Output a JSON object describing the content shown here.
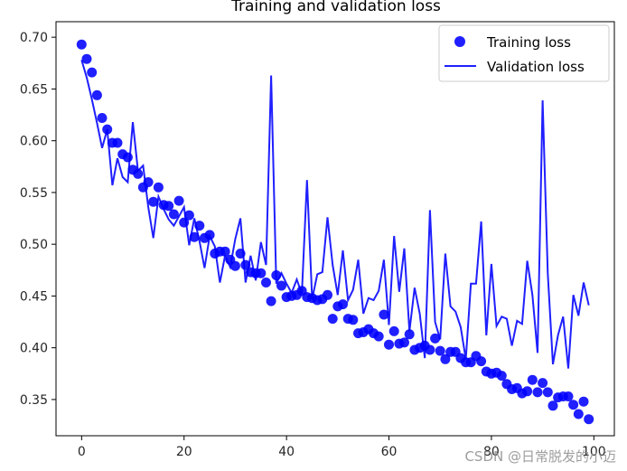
{
  "chart_data": {
    "type": "scatter+line",
    "title": "Training and validation loss",
    "xlim": [
      -5,
      104
    ],
    "ylim": [
      0.315,
      0.715
    ],
    "xticks": [
      0,
      20,
      40,
      60,
      80,
      100
    ],
    "yticks": [
      0.35,
      0.4,
      0.45,
      0.5,
      0.55,
      0.6,
      0.65,
      0.7
    ],
    "grid": false,
    "legend_position": "top-right",
    "series": [
      {
        "name": "Training loss",
        "style": "markers",
        "color": "#0000ff",
        "x": [
          0,
          1,
          2,
          3,
          4,
          5,
          6,
          7,
          8,
          9,
          10,
          11,
          12,
          13,
          14,
          15,
          16,
          17,
          18,
          19,
          20,
          21,
          22,
          23,
          24,
          25,
          26,
          27,
          28,
          29,
          30,
          31,
          32,
          33,
          34,
          35,
          36,
          37,
          38,
          39,
          40,
          41,
          42,
          43,
          44,
          45,
          46,
          47,
          48,
          49,
          50,
          51,
          52,
          53,
          54,
          55,
          56,
          57,
          58,
          59,
          60,
          61,
          62,
          63,
          64,
          65,
          66,
          67,
          68,
          69,
          70,
          71,
          72,
          73,
          74,
          75,
          76,
          77,
          78,
          79,
          80,
          81,
          82,
          83,
          84,
          85,
          86,
          87,
          88,
          89,
          90,
          91,
          92,
          93,
          94,
          95,
          96,
          97,
          98,
          99
        ],
        "y": [
          0.693,
          0.679,
          0.666,
          0.644,
          0.622,
          0.611,
          0.598,
          0.598,
          0.587,
          0.584,
          0.572,
          0.568,
          0.555,
          0.56,
          0.541,
          0.555,
          0.538,
          0.537,
          0.529,
          0.542,
          0.521,
          0.528,
          0.507,
          0.518,
          0.506,
          0.509,
          0.491,
          0.493,
          0.493,
          0.485,
          0.479,
          0.491,
          0.48,
          0.473,
          0.472,
          0.472,
          0.463,
          0.445,
          0.47,
          0.46,
          0.449,
          0.45,
          0.451,
          0.455,
          0.449,
          0.448,
          0.446,
          0.447,
          0.451,
          0.428,
          0.44,
          0.442,
          0.428,
          0.427,
          0.414,
          0.415,
          0.418,
          0.414,
          0.411,
          0.432,
          0.403,
          0.416,
          0.404,
          0.405,
          0.413,
          0.398,
          0.4,
          0.402,
          0.398,
          0.409,
          0.397,
          0.389,
          0.396,
          0.396,
          0.39,
          0.386,
          0.386,
          0.392,
          0.387,
          0.377,
          0.375,
          0.376,
          0.373,
          0.365,
          0.36,
          0.361,
          0.356,
          0.358,
          0.369,
          0.357,
          0.366,
          0.357,
          0.344,
          0.352,
          0.353,
          0.353,
          0.345,
          0.336,
          0.348,
          0.331
        ]
      },
      {
        "name": "Validation loss",
        "style": "line",
        "color": "#0000ff",
        "x": [
          0,
          1,
          2,
          3,
          4,
          5,
          6,
          7,
          8,
          9,
          10,
          11,
          12,
          13,
          14,
          15,
          16,
          17,
          18,
          19,
          20,
          21,
          22,
          23,
          24,
          25,
          26,
          27,
          28,
          29,
          30,
          31,
          32,
          33,
          34,
          35,
          36,
          37,
          38,
          39,
          40,
          41,
          42,
          43,
          44,
          45,
          46,
          47,
          48,
          49,
          50,
          51,
          52,
          53,
          54,
          55,
          56,
          57,
          58,
          59,
          60,
          61,
          62,
          63,
          64,
          65,
          66,
          67,
          68,
          69,
          70,
          71,
          72,
          73,
          74,
          75,
          76,
          77,
          78,
          79,
          80,
          81,
          82,
          83,
          84,
          85,
          86,
          87,
          88,
          89,
          90,
          91,
          92,
          93,
          94,
          95,
          96,
          97,
          98,
          99
        ],
        "y": [
          0.678,
          0.661,
          0.64,
          0.617,
          0.593,
          0.611,
          0.557,
          0.583,
          0.565,
          0.56,
          0.618,
          0.571,
          0.576,
          0.536,
          0.506,
          0.546,
          0.534,
          0.524,
          0.518,
          0.527,
          0.536,
          0.499,
          0.525,
          0.503,
          0.477,
          0.508,
          0.498,
          0.463,
          0.489,
          0.478,
          0.505,
          0.525,
          0.463,
          0.489,
          0.465,
          0.502,
          0.48,
          0.663,
          0.462,
          0.472,
          0.462,
          0.453,
          0.466,
          0.452,
          0.562,
          0.447,
          0.471,
          0.473,
          0.526,
          0.48,
          0.451,
          0.494,
          0.446,
          0.456,
          0.485,
          0.433,
          0.448,
          0.446,
          0.455,
          0.485,
          0.422,
          0.508,
          0.454,
          0.496,
          0.416,
          0.458,
          0.433,
          0.39,
          0.533,
          0.425,
          0.408,
          0.491,
          0.44,
          0.435,
          0.42,
          0.389,
          0.462,
          0.462,
          0.522,
          0.412,
          0.481,
          0.421,
          0.43,
          0.428,
          0.402,
          0.426,
          0.423,
          0.484,
          0.451,
          0.395,
          0.639,
          0.472,
          0.384,
          0.412,
          0.43,
          0.38,
          0.451,
          0.431,
          0.463,
          0.441
        ]
      }
    ]
  },
  "watermark": "CSDN @日常脱发的小迈"
}
